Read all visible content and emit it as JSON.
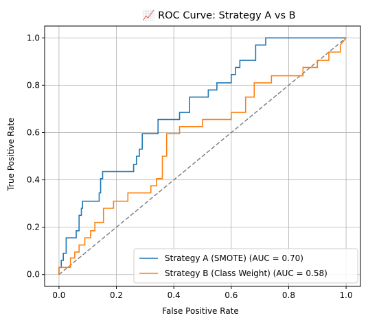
{
  "chart_data": {
    "type": "line",
    "title": "📈 ROC Curve: Strategy A vs B",
    "xlabel": "False Positive Rate",
    "ylabel": "True Positive Rate",
    "xlim": [
      -0.05,
      1.05
    ],
    "ylim": [
      -0.05,
      1.05
    ],
    "xticks": [
      0.0,
      0.2,
      0.4,
      0.6,
      0.8,
      1.0
    ],
    "yticks": [
      0.0,
      0.2,
      0.4,
      0.6,
      0.8,
      1.0
    ],
    "xtick_labels": [
      "0.0",
      "0.2",
      "0.4",
      "0.6",
      "0.8",
      "1.0"
    ],
    "ytick_labels": [
      "0.0",
      "0.2",
      "0.4",
      "0.6",
      "0.8",
      "1.0"
    ],
    "grid": true,
    "legend_position": "lower-right",
    "series": [
      {
        "name": "Strategy A (SMOTE) (AUC = 0.70)",
        "color": "#1f77b4",
        "x": [
          0.0,
          0.0,
          0.008,
          0.008,
          0.015,
          0.015,
          0.025,
          0.025,
          0.06,
          0.06,
          0.07,
          0.07,
          0.078,
          0.078,
          0.082,
          0.082,
          0.09,
          0.09,
          0.14,
          0.14,
          0.145,
          0.145,
          0.152,
          0.152,
          0.26,
          0.26,
          0.27,
          0.27,
          0.28,
          0.28,
          0.29,
          0.29,
          0.3,
          0.3,
          0.345,
          0.345,
          0.42,
          0.42,
          0.455,
          0.455,
          0.52,
          0.52,
          0.55,
          0.55,
          0.6,
          0.6,
          0.615,
          0.615,
          0.63,
          0.63,
          0.685,
          0.685,
          0.72,
          0.72,
          0.98,
          1.0
        ],
        "y": [
          0.0,
          0.03,
          0.03,
          0.06,
          0.06,
          0.09,
          0.09,
          0.155,
          0.155,
          0.185,
          0.185,
          0.25,
          0.25,
          0.28,
          0.28,
          0.31,
          0.31,
          0.31,
          0.31,
          0.345,
          0.345,
          0.405,
          0.405,
          0.435,
          0.435,
          0.465,
          0.465,
          0.5,
          0.5,
          0.53,
          0.53,
          0.595,
          0.595,
          0.595,
          0.595,
          0.655,
          0.655,
          0.685,
          0.685,
          0.75,
          0.75,
          0.78,
          0.78,
          0.81,
          0.81,
          0.845,
          0.845,
          0.875,
          0.875,
          0.905,
          0.905,
          0.97,
          0.97,
          1.0,
          1.0,
          1.0
        ]
      },
      {
        "name": "Strategy B (Class Weight) (AUC = 0.58)",
        "color": "#ff7f0e",
        "x": [
          0.0,
          0.0,
          0.04,
          0.04,
          0.055,
          0.055,
          0.07,
          0.07,
          0.09,
          0.09,
          0.11,
          0.11,
          0.125,
          0.125,
          0.155,
          0.155,
          0.19,
          0.19,
          0.24,
          0.24,
          0.32,
          0.32,
          0.34,
          0.34,
          0.36,
          0.36,
          0.375,
          0.375,
          0.42,
          0.42,
          0.5,
          0.5,
          0.6,
          0.6,
          0.65,
          0.65,
          0.68,
          0.68,
          0.74,
          0.74,
          0.85,
          0.85,
          0.9,
          0.9,
          0.94,
          0.94,
          0.98,
          0.98,
          1.0
        ],
        "y": [
          0.0,
          0.03,
          0.03,
          0.07,
          0.07,
          0.095,
          0.095,
          0.125,
          0.125,
          0.155,
          0.155,
          0.185,
          0.185,
          0.22,
          0.22,
          0.28,
          0.28,
          0.31,
          0.31,
          0.345,
          0.345,
          0.375,
          0.375,
          0.405,
          0.405,
          0.5,
          0.5,
          0.595,
          0.595,
          0.625,
          0.625,
          0.655,
          0.655,
          0.685,
          0.685,
          0.75,
          0.75,
          0.81,
          0.81,
          0.84,
          0.84,
          0.875,
          0.875,
          0.905,
          0.905,
          0.94,
          0.94,
          0.97,
          1.0
        ]
      },
      {
        "name": "",
        "color": "#808080",
        "dashed": true,
        "x": [
          0.0,
          1.0
        ],
        "y": [
          0.0,
          1.0
        ]
      }
    ]
  }
}
